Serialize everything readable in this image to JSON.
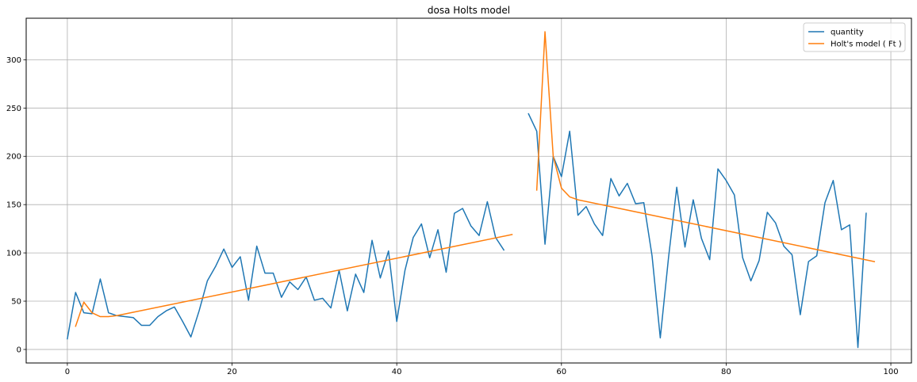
{
  "chart_data": {
    "type": "line",
    "title": "dosa Holts model",
    "xlabel": "",
    "ylabel": "",
    "xlim": [
      -5,
      102.5
    ],
    "ylim": [
      -14,
      343
    ],
    "xticks": [
      0,
      20,
      40,
      60,
      80,
      100
    ],
    "yticks": [
      0,
      50,
      100,
      150,
      200,
      250,
      300
    ],
    "grid": true,
    "legend_position": "top-right",
    "series": [
      {
        "name": "quantity",
        "color": "#1f77b4",
        "segments": [
          {
            "x_start": 0,
            "values": [
              11,
              59,
              38,
              37,
              73,
              38,
              35,
              34,
              33,
              25,
              25,
              34,
              40,
              44,
              29,
              13,
              40,
              71,
              86,
              104,
              85,
              96,
              51,
              107,
              79,
              79,
              54,
              70,
              62,
              75,
              51,
              53,
              43,
              82,
              40,
              78,
              59,
              113,
              74,
              102,
              29,
              82,
              116,
              130,
              95,
              124,
              80,
              141,
              146,
              128,
              118,
              153,
              116,
              103
            ]
          },
          {
            "x_start": 56,
            "values": [
              244,
              226,
              109,
              200,
              179,
              226,
              139,
              148,
              130,
              118,
              177,
              159,
              172,
              151,
              152,
              97,
              12,
              95,
              168,
              106,
              155,
              115,
              93,
              187,
              175,
              160,
              95,
              71,
              92,
              142,
              131,
              107,
              98,
              36,
              91,
              97,
              152,
              175,
              124,
              129,
              2,
              141
            ]
          }
        ]
      },
      {
        "name": "Holt's model ( Ft )",
        "color": "#ff7f0e",
        "segments": [
          {
            "x": [
              1,
              2,
              3,
              4,
              5,
              6,
              54
            ],
            "values": [
              24,
              49,
              38,
              34,
              34,
              35,
              119
            ]
          },
          {
            "x": [
              57,
              58,
              59,
              60,
              61,
              62,
              98
            ],
            "values": [
              165,
              329,
              200,
              167,
              158,
              155,
              91
            ]
          }
        ]
      }
    ]
  }
}
